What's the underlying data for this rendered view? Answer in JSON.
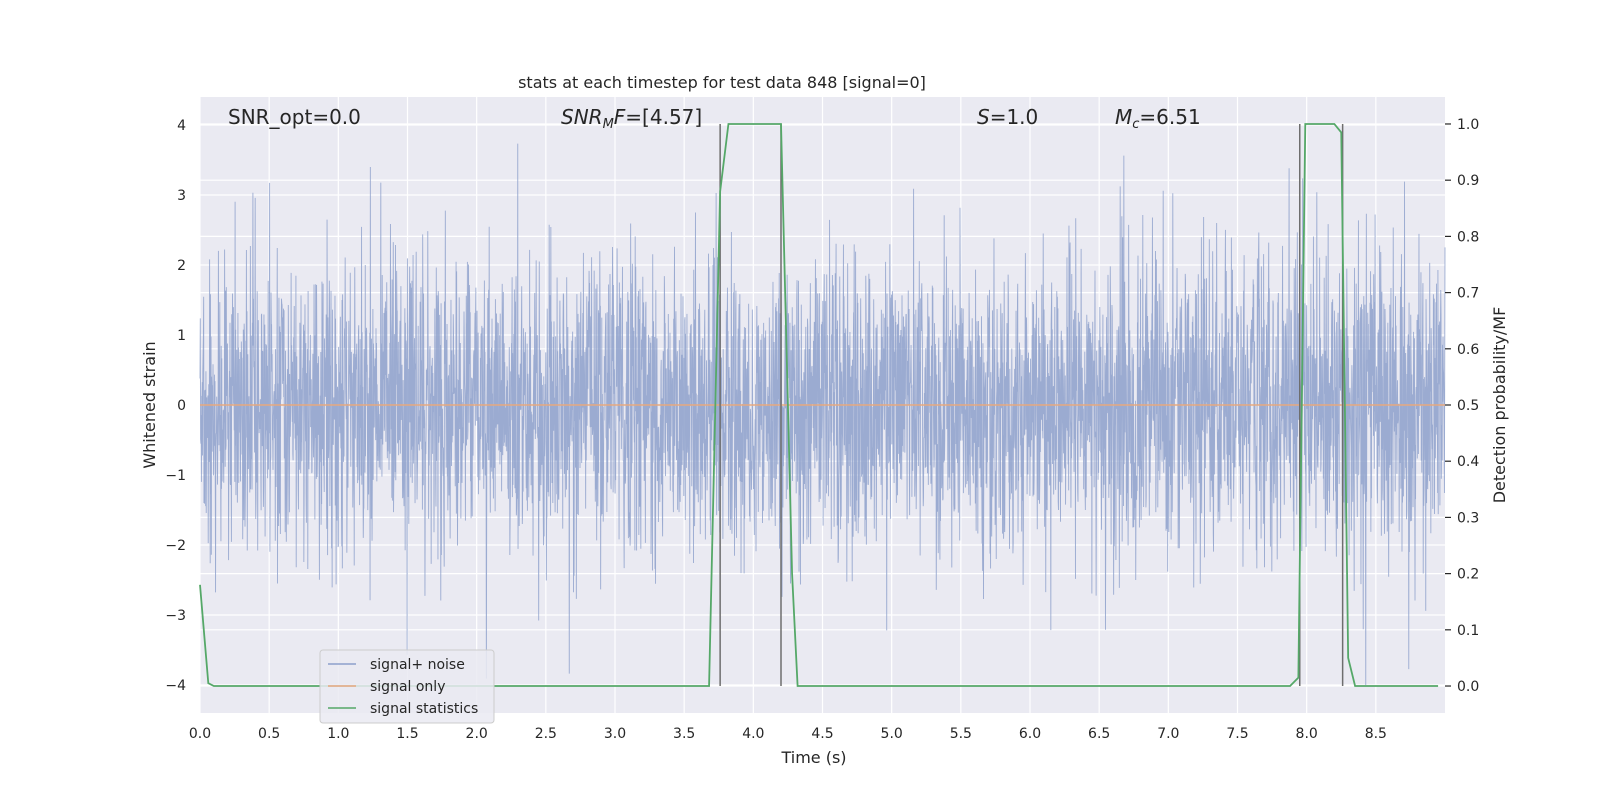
{
  "chart_data": {
    "type": "line",
    "title": "stats at each timestep for test data 848 [signal=0]",
    "xlabel": "Time (s)",
    "ylabel": "Whitened strain",
    "y2label": "Detection probability/MF",
    "xlim": [
      0.0,
      9.0
    ],
    "ylim": [
      -4.4,
      4.4
    ],
    "y2lim": [
      -0.048,
      1.048
    ],
    "x_ticks": [
      "0.0",
      "0.5",
      "1.0",
      "1.5",
      "2.0",
      "2.5",
      "3.0",
      "3.5",
      "4.0",
      "4.5",
      "5.0",
      "5.5",
      "6.0",
      "6.5",
      "7.0",
      "7.5",
      "8.0",
      "8.5"
    ],
    "y_ticks": [
      "4",
      "3",
      "2",
      "1",
      "0",
      "−1",
      "−2",
      "−3",
      "−4"
    ],
    "y2_ticks": [
      "1.0",
      "0.9",
      "0.8",
      "0.7",
      "0.6",
      "0.5",
      "0.4",
      "0.3",
      "0.2",
      "0.1",
      "0.0"
    ],
    "grid": true,
    "legend_position": "lower-left",
    "annotations": {
      "snr_opt": "SNR_opt=0.0",
      "snr_mf_label": "SNR",
      "snr_mf_sub": "M",
      "snr_mf_tail": "F",
      "snr_mf_value": "=[4.57]",
      "s_label": "S",
      "s_value": "=1.0",
      "mc_label": "M",
      "mc_sub": "c",
      "mc_value": "=6.51"
    },
    "series": [
      {
        "name": "signal+ noise",
        "color": "#8da0cb",
        "description_values": "dense whitened noise, amplitude roughly within ±4"
      },
      {
        "name": "signal only",
        "color": "#e5a87f",
        "x": [
          0.0,
          9.0
        ],
        "y": [
          0.0,
          0.0
        ]
      },
      {
        "name": "signal statistics",
        "color": "#55a868",
        "x": [
          0.0,
          0.06,
          0.1,
          3.68,
          3.76,
          3.82,
          4.2,
          4.28,
          4.32,
          7.88,
          7.94,
          7.99,
          8.02,
          8.2,
          8.25,
          8.3,
          8.35,
          8.95
        ],
        "y": [
          0.18,
          0.005,
          0.0,
          0.0,
          0.88,
          1.0,
          1.0,
          0.2,
          0.0,
          0.0,
          0.015,
          1.0,
          1.0,
          1.0,
          0.985,
          0.05,
          0.0,
          0.0
        ]
      }
    ],
    "detection_markers_x": [
      3.76,
      4.2,
      7.95,
      8.26
    ]
  }
}
